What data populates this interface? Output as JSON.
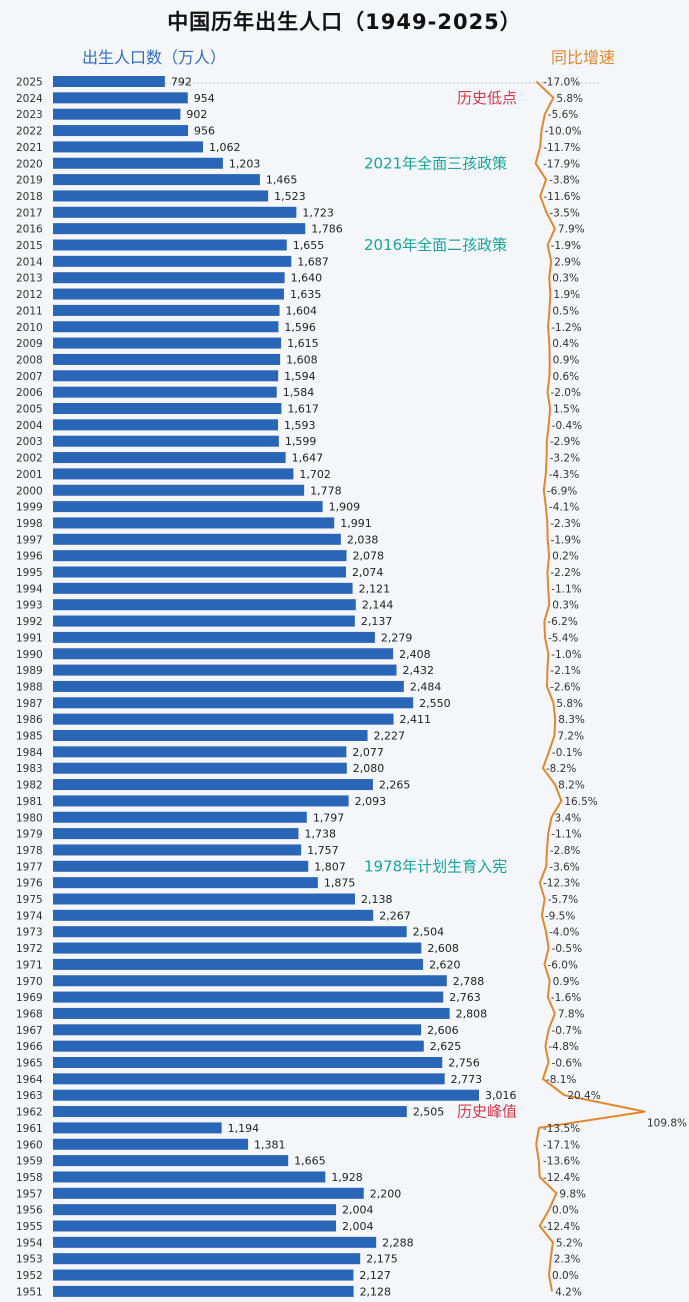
{
  "title": "中国历年出生人口（1949-2025）",
  "left_axis_label": "出生人口数（万人）",
  "right_axis_label": "同比增速",
  "colors": {
    "bar": "#2a66b8",
    "line": "#e0882e",
    "red": "#d23a4a",
    "teal": "#1aa59a"
  },
  "chart_data": {
    "type": "bar",
    "orientation": "horizontal",
    "title": "中国历年出生人口（1949-2025）",
    "categories": [
      "2025",
      "2024",
      "2023",
      "2022",
      "2021",
      "2020",
      "2019",
      "2018",
      "2017",
      "2016",
      "2015",
      "2014",
      "2013",
      "2012",
      "2011",
      "2010",
      "2009",
      "2008",
      "2007",
      "2006",
      "2005",
      "2004",
      "2003",
      "2002",
      "2001",
      "2000",
      "1999",
      "1998",
      "1997",
      "1996",
      "1995",
      "1994",
      "1993",
      "1992",
      "1991",
      "1990",
      "1989",
      "1988",
      "1987",
      "1986",
      "1985",
      "1984",
      "1983",
      "1982",
      "1981",
      "1980",
      "1979",
      "1978",
      "1977",
      "1976",
      "1975",
      "1974",
      "1973",
      "1972",
      "1971",
      "1970",
      "1969",
      "1968",
      "1967",
      "1966",
      "1965",
      "1964",
      "1963",
      "1962",
      "1961",
      "1960",
      "1959",
      "1958",
      "1957",
      "1956",
      "1955",
      "1954",
      "1953",
      "1952",
      "1951"
    ],
    "value_labels": [
      "792",
      "954",
      "902",
      "956",
      "1,062",
      "1,203",
      "1,465",
      "1,523",
      "1,723",
      "1,786",
      "1,655",
      "1,687",
      "1,640",
      "1,635",
      "1,604",
      "1,596",
      "1,615",
      "1,608",
      "1,594",
      "1,584",
      "1,617",
      "1,593",
      "1,599",
      "1,647",
      "1,702",
      "1,778",
      "1,909",
      "1,991",
      "2,038",
      "2,078",
      "2,074",
      "2,121",
      "2,144",
      "2,137",
      "2,279",
      "2,408",
      "2,432",
      "2,484",
      "2,550",
      "2,411",
      "2,227",
      "2,077",
      "2,080",
      "2,265",
      "2,093",
      "1,797",
      "1,738",
      "1,757",
      "1,807",
      "1,875",
      "2,138",
      "2,267",
      "2,504",
      "2,608",
      "2,620",
      "2,788",
      "2,763",
      "2,808",
      "2,606",
      "2,625",
      "2,756",
      "2,773",
      "3,016",
      "2,505",
      "1,194",
      "1,381",
      "1,665",
      "1,928",
      "2,200",
      "2,004",
      "2,004",
      "2,288",
      "2,175",
      "2,127",
      "2,128"
    ],
    "growth_labels": [
      "-17.0%",
      "5.8%",
      "-5.6%",
      "-10.0%",
      "-11.7%",
      "-17.9%",
      "-3.8%",
      "-11.6%",
      "-3.5%",
      "7.9%",
      "-1.9%",
      "2.9%",
      "0.3%",
      "1.9%",
      "0.5%",
      "-1.2%",
      "0.4%",
      "0.9%",
      "0.6%",
      "-2.0%",
      "1.5%",
      "-0.4%",
      "-2.9%",
      "-3.2%",
      "-4.3%",
      "-6.9%",
      "-4.1%",
      "-2.3%",
      "-1.9%",
      "0.2%",
      "-2.2%",
      "-1.1%",
      "0.3%",
      "-6.2%",
      "-5.4%",
      "-1.0%",
      "-2.1%",
      "-2.6%",
      "5.8%",
      "8.3%",
      "7.2%",
      "-0.1%",
      "-8.2%",
      "8.2%",
      "16.5%",
      "3.4%",
      "-1.1%",
      "-2.8%",
      "-3.6%",
      "-12.3%",
      "-5.7%",
      "-9.5%",
      "-4.0%",
      "-0.5%",
      "-6.0%",
      "0.9%",
      "-1.6%",
      "7.8%",
      "-0.7%",
      "-4.8%",
      "-0.6%",
      "-8.1%",
      "20.4%",
      "109.8%",
      "-13.5%",
      "-17.1%",
      "-13.6%",
      "-12.4%",
      "9.8%",
      "0.0%",
      "-12.4%",
      "5.2%",
      "2.3%",
      "0.0%",
      "4.2%"
    ],
    "series": [
      {
        "name": "出生人口数（万人）",
        "values": [
          792,
          954,
          902,
          956,
          1062,
          1203,
          1465,
          1523,
          1723,
          1786,
          1655,
          1687,
          1640,
          1635,
          1604,
          1596,
          1615,
          1608,
          1594,
          1584,
          1617,
          1593,
          1599,
          1647,
          1702,
          1778,
          1909,
          1991,
          2038,
          2078,
          2074,
          2121,
          2144,
          2137,
          2279,
          2408,
          2432,
          2484,
          2550,
          2411,
          2227,
          2077,
          2080,
          2265,
          2093,
          1797,
          1738,
          1757,
          1807,
          1875,
          2138,
          2267,
          2504,
          2608,
          2620,
          2788,
          2763,
          2808,
          2606,
          2625,
          2756,
          2773,
          3016,
          2505,
          1194,
          1381,
          1665,
          1928,
          2200,
          2004,
          2004,
          2288,
          2175,
          2127,
          2128
        ]
      },
      {
        "name": "同比增速",
        "values": [
          -17.0,
          5.8,
          -5.6,
          -10.0,
          -11.7,
          -17.9,
          -3.8,
          -11.6,
          -3.5,
          7.9,
          -1.9,
          2.9,
          0.3,
          1.9,
          0.5,
          -1.2,
          0.4,
          0.9,
          0.6,
          -2.0,
          1.5,
          -0.4,
          -2.9,
          -3.2,
          -4.3,
          -6.9,
          -4.1,
          -2.3,
          -1.9,
          0.2,
          -2.2,
          -1.1,
          0.3,
          -6.2,
          -5.4,
          -1.0,
          -2.1,
          -2.6,
          5.8,
          8.3,
          7.2,
          -0.1,
          -8.2,
          8.2,
          16.5,
          3.4,
          -1.1,
          -2.8,
          -3.6,
          -12.3,
          -5.7,
          -9.5,
          -4.0,
          -0.5,
          -6.0,
          0.9,
          -1.6,
          7.8,
          -0.7,
          -4.8,
          -0.6,
          -8.1,
          20.4,
          109.8,
          -13.5,
          -17.1,
          -13.6,
          -12.4,
          9.8,
          0.0,
          -12.4,
          5.2,
          2.3,
          0.0,
          4.2
        ]
      }
    ],
    "annotations": [
      {
        "text": "历史低点",
        "color": "#d23a4a",
        "year": "2024"
      },
      {
        "text": "2021年全面三孩政策",
        "color": "#1aa59a",
        "year": "2020"
      },
      {
        "text": "2016年全面二孩政策",
        "color": "#1aa59a",
        "year": "2015"
      },
      {
        "text": "1978年计划生育入宪",
        "color": "#1aa59a",
        "year": "1977"
      },
      {
        "text": "历史峰值",
        "color": "#d23a4a",
        "year": "1962"
      }
    ]
  }
}
